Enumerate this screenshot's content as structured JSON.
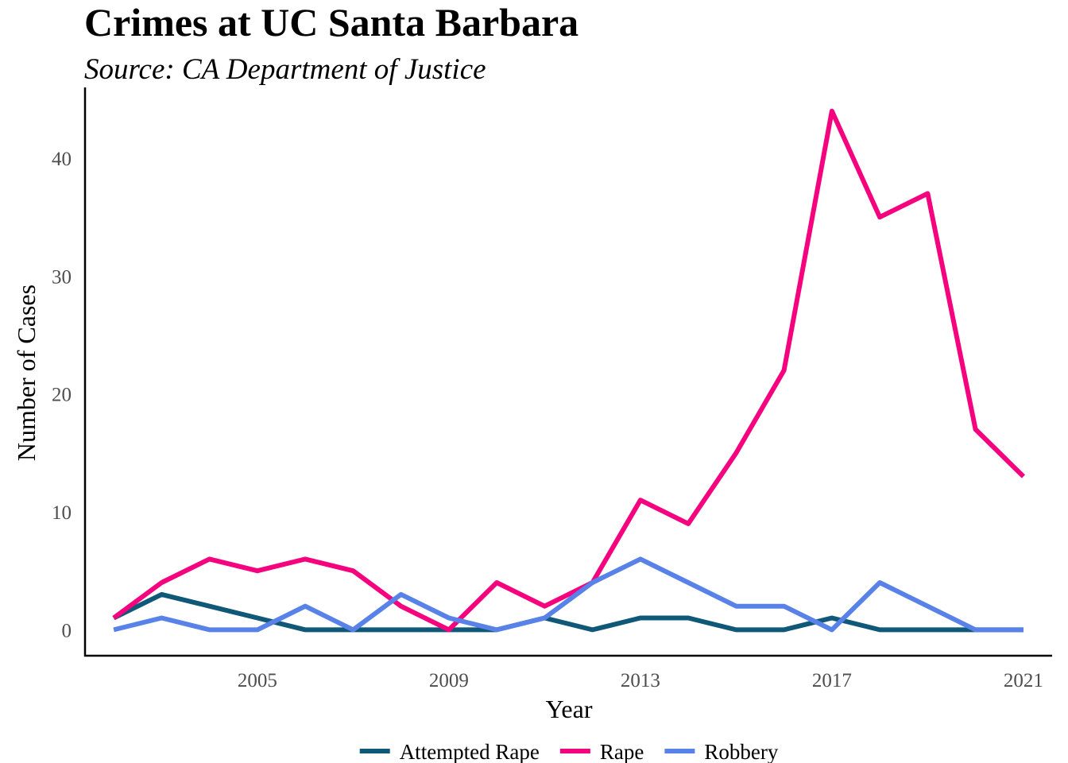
{
  "chart_data": {
    "type": "line",
    "title": "Crimes at UC Santa Barbara",
    "subtitle": "Source: CA Department of Justice",
    "xlabel": "Year",
    "ylabel": "Number of Cases",
    "x": [
      2002,
      2003,
      2004,
      2005,
      2006,
      2007,
      2008,
      2009,
      2010,
      2011,
      2012,
      2013,
      2014,
      2015,
      2016,
      2017,
      2018,
      2019,
      2020,
      2021
    ],
    "xticks": [
      2005,
      2009,
      2013,
      2017,
      2021
    ],
    "yticks": [
      0,
      10,
      20,
      30,
      40
    ],
    "xlim": [
      2001.4,
      2021.6
    ],
    "ylim": [
      -2.2,
      46
    ],
    "grid": false,
    "legend_position": "bottom",
    "series": [
      {
        "name": "Attempted Rape",
        "color": "#0f5878",
        "values": [
          1,
          3,
          2,
          1,
          0,
          0,
          0,
          0,
          0,
          1,
          0,
          1,
          1,
          0,
          0,
          1,
          0,
          0,
          0,
          0
        ]
      },
      {
        "name": "Rape",
        "color": "#f5037f",
        "values": [
          1,
          4,
          6,
          5,
          6,
          5,
          2,
          0,
          4,
          2,
          4,
          11,
          9,
          15,
          22,
          44,
          35,
          37,
          17,
          13
        ]
      },
      {
        "name": "Robbery",
        "color": "#5882e8",
        "values": [
          0,
          1,
          0,
          0,
          2,
          0,
          3,
          1,
          0,
          1,
          4,
          6,
          4,
          2,
          2,
          0,
          4,
          2,
          0,
          0
        ]
      }
    ]
  }
}
